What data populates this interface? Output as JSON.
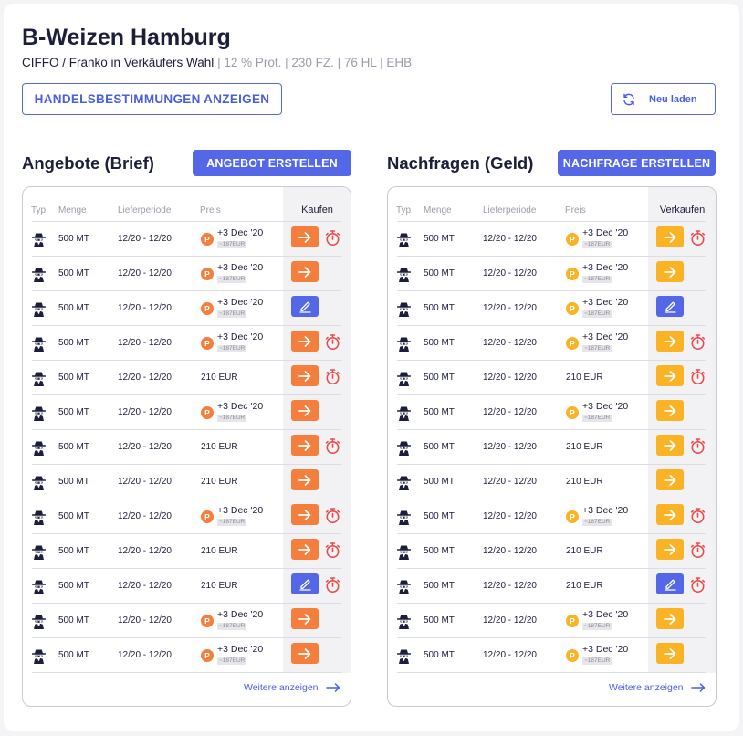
{
  "title": "B-Weizen Hamburg",
  "subtitle": {
    "main": "CIFFO / Franko in Verkäufers Wahl",
    "details": "| 12 % Prot. | 230 FZ. | 76 HL | EHB"
  },
  "trade_rules_button": "HANDELSBESTIMMUNGEN ANZEIGEN",
  "reload_button": "Neu laden",
  "colors": {
    "accent": "#5468e7",
    "offer_action": "#f47e3c",
    "bid_action": "#fbb326",
    "edit_action": "#5468e7",
    "timer": "#e84c4c"
  },
  "offers": {
    "title": "Angebote (Brief)",
    "create_button": "ANGEBOT ERSTELLEN",
    "headers": {
      "type": "Typ",
      "quantity": "Menge",
      "period": "Lieferperiode",
      "price": "Preis",
      "action": "Kaufen"
    },
    "rows": [
      {
        "type_icon": "spy-icon",
        "quantity": "500 MT",
        "period": "12/20 - 12/20",
        "premium": true,
        "coin": "P",
        "price": "+3 Dec '20",
        "price_tag": "~187EUR",
        "action": "arrow",
        "timer": true
      },
      {
        "type_icon": "spy-icon",
        "quantity": "500 MT",
        "period": "12/20 - 12/20",
        "premium": true,
        "coin": "P",
        "price": "+3 Dec '20",
        "price_tag": "~187EUR",
        "action": "arrow",
        "timer": false
      },
      {
        "type_icon": "spy-icon",
        "quantity": "500 MT",
        "period": "12/20 - 12/20",
        "premium": true,
        "coin": "P",
        "price": "+3 Dec '20",
        "price_tag": "~187EUR",
        "action": "edit",
        "timer": false
      },
      {
        "type_icon": "spy-icon",
        "quantity": "500 MT",
        "period": "12/20 - 12/20",
        "premium": true,
        "coin": "P",
        "price": "+3 Dec '20",
        "price_tag": "~187EUR",
        "action": "arrow",
        "timer": true
      },
      {
        "type_icon": "spy-icon",
        "quantity": "500 MT",
        "period": "12/20 - 12/20",
        "premium": false,
        "price": "210 EUR",
        "action": "arrow",
        "timer": true
      },
      {
        "type_icon": "spy-icon",
        "quantity": "500 MT",
        "period": "12/20 - 12/20",
        "premium": true,
        "coin": "P",
        "price": "+3 Dec '20",
        "price_tag": "~187EUR",
        "action": "arrow",
        "timer": false
      },
      {
        "type_icon": "spy-icon",
        "quantity": "500 MT",
        "period": "12/20 - 12/20",
        "premium": false,
        "price": "210 EUR",
        "action": "arrow",
        "timer": true
      },
      {
        "type_icon": "spy-icon",
        "quantity": "500 MT",
        "period": "12/20 - 12/20",
        "premium": false,
        "price": "210 EUR",
        "action": "arrow",
        "timer": false
      },
      {
        "type_icon": "spy-icon",
        "quantity": "500 MT",
        "period": "12/20 - 12/20",
        "premium": true,
        "coin": "P",
        "price": "+3 Dec '20",
        "price_tag": "~187EUR",
        "action": "arrow",
        "timer": true
      },
      {
        "type_icon": "spy-icon",
        "quantity": "500 MT",
        "period": "12/20 - 12/20",
        "premium": false,
        "price": "210 EUR",
        "action": "arrow",
        "timer": true
      },
      {
        "type_icon": "spy-icon",
        "quantity": "500 MT",
        "period": "12/20 - 12/20",
        "premium": false,
        "price": "210 EUR",
        "action": "edit",
        "timer": true
      },
      {
        "type_icon": "spy-icon",
        "quantity": "500 MT",
        "period": "12/20 - 12/20",
        "premium": true,
        "coin": "P",
        "price": "+3 Dec '20",
        "price_tag": "~187EUR",
        "action": "arrow",
        "timer": false
      },
      {
        "type_icon": "spy-icon",
        "quantity": "500 MT",
        "period": "12/20 - 12/20",
        "premium": true,
        "coin": "P",
        "price": "+3 Dec '20",
        "price_tag": "~187EUR",
        "action": "arrow",
        "timer": false
      }
    ],
    "more_link": "Weitere anzeigen"
  },
  "bids": {
    "title": "Nachfragen (Geld)",
    "create_button": "NACHFRAGE ERSTELLEN",
    "headers": {
      "type": "Typ",
      "quantity": "Menge",
      "period": "Lieferperiode",
      "price": "Preis",
      "action": "Verkaufen"
    },
    "rows": [
      {
        "type_icon": "spy-icon",
        "quantity": "500 MT",
        "period": "12/20 - 12/20",
        "premium": true,
        "coin": "P",
        "price": "+3 Dec '20",
        "price_tag": "~187EUR",
        "action": "arrow",
        "timer": true
      },
      {
        "type_icon": "spy-icon",
        "quantity": "500 MT",
        "period": "12/20 - 12/20",
        "premium": true,
        "coin": "P",
        "price": "+3 Dec '20",
        "price_tag": "~187EUR",
        "action": "arrow",
        "timer": false
      },
      {
        "type_icon": "spy-icon",
        "quantity": "500 MT",
        "period": "12/20 - 12/20",
        "premium": true,
        "coin": "P",
        "price": "+3 Dec '20",
        "price_tag": "~187EUR",
        "action": "edit",
        "timer": false
      },
      {
        "type_icon": "spy-icon",
        "quantity": "500 MT",
        "period": "12/20 - 12/20",
        "premium": true,
        "coin": "P",
        "price": "+3 Dec '20",
        "price_tag": "~187EUR",
        "action": "arrow",
        "timer": true
      },
      {
        "type_icon": "spy-icon",
        "quantity": "500 MT",
        "period": "12/20 - 12/20",
        "premium": false,
        "price": "210 EUR",
        "action": "arrow",
        "timer": true
      },
      {
        "type_icon": "spy-icon",
        "quantity": "500 MT",
        "period": "12/20 - 12/20",
        "premium": true,
        "coin": "P",
        "price": "+3 Dec '20",
        "price_tag": "~187EUR",
        "action": "arrow",
        "timer": false
      },
      {
        "type_icon": "spy-icon",
        "quantity": "500 MT",
        "period": "12/20 - 12/20",
        "premium": false,
        "price": "210 EUR",
        "action": "arrow",
        "timer": true
      },
      {
        "type_icon": "spy-icon",
        "quantity": "500 MT",
        "period": "12/20 - 12/20",
        "premium": false,
        "price": "210 EUR",
        "action": "arrow",
        "timer": false
      },
      {
        "type_icon": "spy-icon",
        "quantity": "500 MT",
        "period": "12/20 - 12/20",
        "premium": true,
        "coin": "P",
        "price": "+3 Dec '20",
        "price_tag": "~187EUR",
        "action": "arrow",
        "timer": true
      },
      {
        "type_icon": "spy-icon",
        "quantity": "500 MT",
        "period": "12/20 - 12/20",
        "premium": false,
        "price": "210 EUR",
        "action": "arrow",
        "timer": true
      },
      {
        "type_icon": "spy-icon",
        "quantity": "500 MT",
        "period": "12/20 - 12/20",
        "premium": false,
        "price": "210 EUR",
        "action": "edit",
        "timer": true
      },
      {
        "type_icon": "spy-icon",
        "quantity": "500 MT",
        "period": "12/20 - 12/20",
        "premium": true,
        "coin": "P",
        "price": "+3 Dec '20",
        "price_tag": "~187EUR",
        "action": "arrow",
        "timer": false
      },
      {
        "type_icon": "spy-icon",
        "quantity": "500 MT",
        "period": "12/20 - 12/20",
        "premium": true,
        "coin": "P",
        "price": "+3 Dec '20",
        "price_tag": "~187EUR",
        "action": "arrow",
        "timer": false
      }
    ],
    "more_link": "Weitere anzeigen"
  }
}
